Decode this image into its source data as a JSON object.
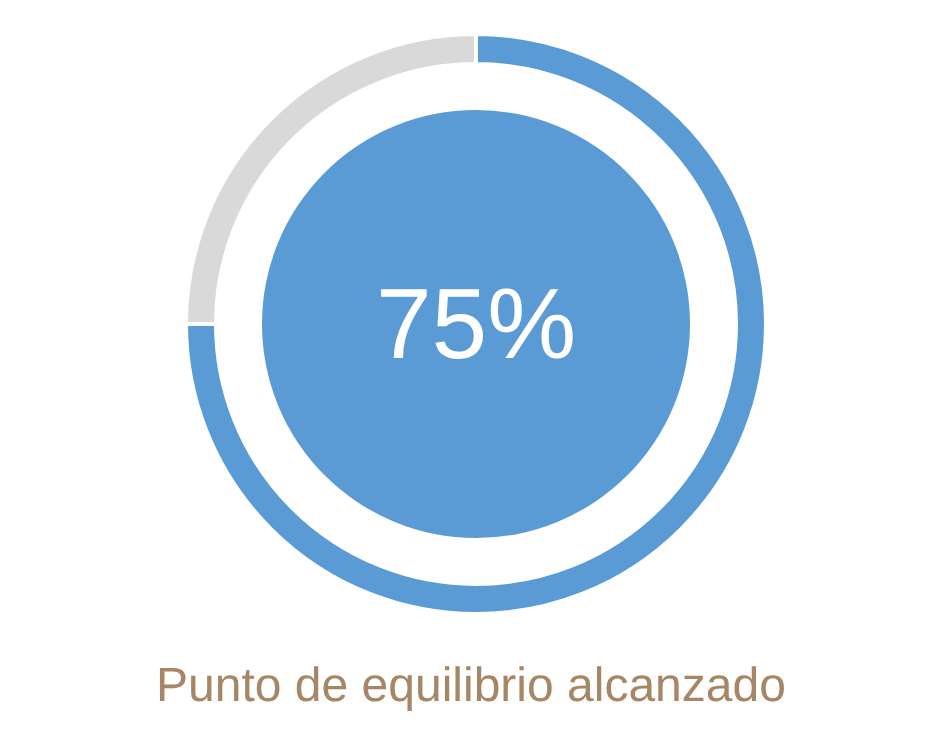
{
  "chart_data": {
    "type": "donut",
    "title": "Punto de equilibrio alcanzado",
    "categories": [
      null,
      null
    ],
    "values": [
      75,
      25
    ],
    "colors": [
      "#5b9bd5",
      "#d9d9d9"
    ],
    "value_labels": [
      "75%",
      null
    ]
  }
}
